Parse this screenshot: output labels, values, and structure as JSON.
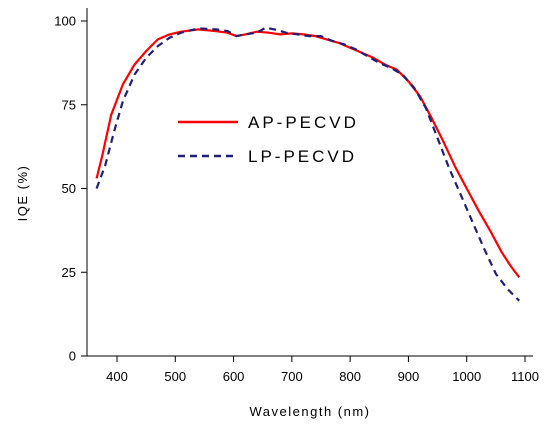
{
  "chart_data": {
    "type": "line",
    "title": "",
    "xlabel": "Wavelength (nm)",
    "ylabel": "IQE (%)",
    "xlim": [
      360,
      1110
    ],
    "ylim": [
      0,
      105
    ],
    "x_ticks": [
      400,
      500,
      600,
      700,
      800,
      900,
      1000,
      1100
    ],
    "y_ticks": [
      0,
      25,
      50,
      75,
      100
    ],
    "x_tick_labels": [
      "400",
      "500",
      "600",
      "700",
      "800",
      "900",
      "1000",
      "1100"
    ],
    "y_tick_labels": [
      "0",
      "25",
      "50",
      "75",
      "100"
    ],
    "grid": false,
    "legend_position": "center-left",
    "series": [
      {
        "name": "AP-PECVD",
        "color": "#ff0000",
        "dash": "solid",
        "x": [
          365,
          375,
          390,
          410,
          430,
          450,
          470,
          490,
          510,
          540,
          570,
          590,
          605,
          620,
          640,
          660,
          680,
          700,
          720,
          740,
          760,
          780,
          800,
          820,
          840,
          860,
          880,
          900,
          920,
          940,
          960,
          980,
          1000,
          1020,
          1040,
          1060,
          1075,
          1090
        ],
        "y": [
          53,
          60,
          72,
          81,
          87,
          91,
          94.5,
          96,
          96.8,
          97.5,
          97,
          96.5,
          95.5,
          96,
          96.8,
          96.5,
          96,
          96.3,
          96,
          95.5,
          94.5,
          93.5,
          92,
          90.5,
          89,
          87,
          85.5,
          82,
          77.5,
          71,
          64,
          56.5,
          50,
          43.5,
          37.5,
          31,
          27,
          23.5
        ]
      },
      {
        "name": "LP-PECVD",
        "color": "#1f1f7a",
        "dash": "dashed",
        "x": [
          365,
          380,
          395,
          410,
          430,
          450,
          470,
          490,
          510,
          540,
          570,
          590,
          605,
          620,
          640,
          655,
          670,
          690,
          710,
          730,
          750,
          770,
          790,
          810,
          830,
          850,
          870,
          890,
          910,
          930,
          950,
          970,
          990,
          1010,
          1030,
          1050,
          1070,
          1090
        ],
        "y": [
          50,
          57,
          67,
          76,
          84,
          89,
          92.5,
          95,
          96.5,
          97.8,
          97.5,
          97,
          95.5,
          96,
          96.5,
          98,
          97.5,
          96.5,
          96,
          95.5,
          95.5,
          94,
          93,
          91.5,
          89.5,
          87.5,
          86,
          84,
          80,
          74,
          65,
          56,
          48,
          40,
          32,
          24.5,
          20,
          16.5
        ]
      }
    ]
  }
}
